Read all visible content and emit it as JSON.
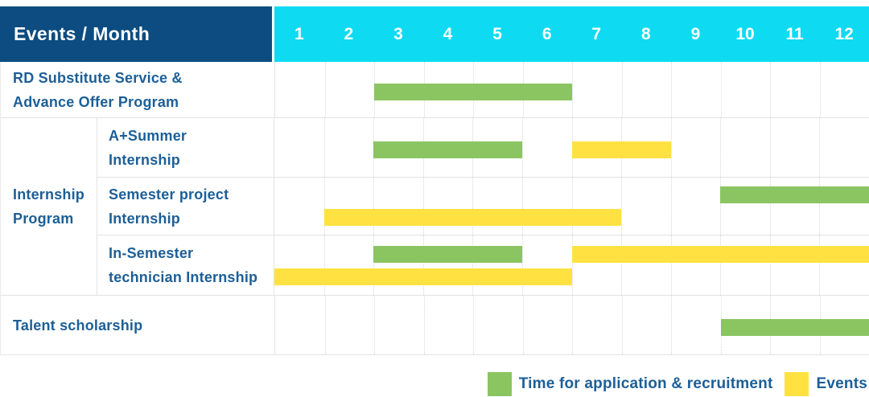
{
  "colors": {
    "header_navy": "#0c4c80",
    "header_cyan": "#0edbf2",
    "green": "#8bc562",
    "yellow": "#ffe242",
    "label_text": "#1c5f97",
    "header_text": "#ffffff",
    "grid_solid": "#e3e3e3",
    "grid_dotted": "#d8d8d8"
  },
  "chart_data": {
    "type": "bar",
    "variant": "gantt-timeline",
    "title": "Events / Month",
    "corner_label": "Events / Month",
    "x_axis": {
      "unit": "month",
      "range": [
        1,
        12
      ],
      "ticks": [
        "1",
        "2",
        "3",
        "4",
        "5",
        "6",
        "7",
        "8",
        "9",
        "10",
        "11",
        "12"
      ]
    },
    "legend": [
      {
        "key": "green",
        "label": "Time for application & recruitment"
      },
      {
        "key": "yellow",
        "label": "Events"
      }
    ],
    "group": {
      "label_lines": [
        "Internship",
        "Program"
      ]
    },
    "rows": [
      {
        "id": "rd-substitute-service",
        "group": "",
        "label_lines": [
          "RD Substitute Service &",
          "Advance Offer Program"
        ],
        "lines": [
          [
            {
              "series": "Time for application & recruitment",
              "color": "green",
              "start_month": 3,
              "end_month": 6
            }
          ]
        ]
      },
      {
        "id": "a-plus-summer-internship",
        "group": "Internship Program",
        "label_lines": [
          "A+Summer",
          "Internship"
        ],
        "lines": [
          [
            {
              "series": "Time for application & recruitment",
              "color": "green",
              "start_month": 3,
              "end_month": 5
            },
            {
              "series": "Events",
              "color": "yellow",
              "start_month": 7,
              "end_month": 8
            }
          ]
        ]
      },
      {
        "id": "semester-project-internship",
        "group": "Internship Program",
        "label_lines": [
          "Semester project",
          "Internship"
        ],
        "lines": [
          [
            {
              "series": "Time for application & recruitment",
              "color": "green",
              "start_month": 10,
              "end_month": 12
            }
          ],
          [
            {
              "series": "Events",
              "color": "yellow",
              "start_month": 2,
              "end_month": 7
            }
          ]
        ]
      },
      {
        "id": "in-semester-technician-internship",
        "group": "Internship Program",
        "label_lines": [
          "In-Semester",
          "technician Internship"
        ],
        "lines": [
          [
            {
              "series": "Time for application & recruitment",
              "color": "green",
              "start_month": 3,
              "end_month": 5
            },
            {
              "series": "Events",
              "color": "yellow",
              "start_month": 7,
              "end_month": 12
            }
          ],
          [
            {
              "series": "Events",
              "color": "yellow",
              "start_month": 1,
              "end_month": 6
            }
          ]
        ]
      },
      {
        "id": "talent-scholarship",
        "group": "",
        "label_lines": [
          "Talent scholarship"
        ],
        "lines": [
          [
            {
              "series": "Time for application & recruitment",
              "color": "green",
              "start_month": 10,
              "end_month": 12
            }
          ]
        ]
      }
    ]
  }
}
